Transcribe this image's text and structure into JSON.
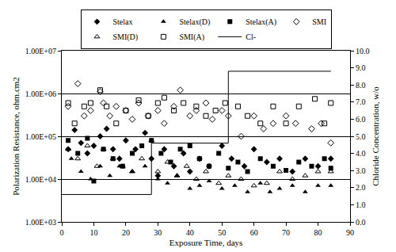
{
  "chart_data": {
    "type": "scatter",
    "x_label": "Exposure Time, days",
    "y_label": "Polarization Resistance, ohm.cm2",
    "y2_label": "Chloride Concentration, w/o",
    "log": "y",
    "grid": true,
    "legend": "top",
    "xlim": [
      0,
      90
    ],
    "xticks": [
      0,
      10,
      20,
      30,
      40,
      50,
      60,
      70,
      80,
      90
    ],
    "ylim": [
      1000,
      10000000
    ],
    "yticks": [
      {
        "value": 1000,
        "label": "1.00E+03"
      },
      {
        "value": 10000,
        "label": "1.00E+04"
      },
      {
        "value": 100000,
        "label": "1.00E+05"
      },
      {
        "value": 1000000,
        "label": "1.00E+06"
      },
      {
        "value": 10000000,
        "label": "1.00E+07"
      }
    ],
    "y2lim": [
      0,
      10
    ],
    "y2ticks": [
      {
        "value": 0,
        "label": "0.0"
      },
      {
        "value": 1,
        "label": "1.0"
      },
      {
        "value": 2,
        "label": "2.0"
      },
      {
        "value": 3,
        "label": "3.0"
      },
      {
        "value": 4,
        "label": "4.0"
      },
      {
        "value": 5,
        "label": "5.0"
      },
      {
        "value": 6,
        "label": "6.0"
      },
      {
        "value": 7,
        "label": "7.0"
      },
      {
        "value": 8,
        "label": "8.0"
      },
      {
        "value": 9,
        "label": "9.0"
      },
      {
        "value": 10,
        "label": "10.0"
      }
    ],
    "series": [
      {
        "name": "Stelax",
        "type": "scatter",
        "marker": "diamond",
        "color": "#000000",
        "x": [
          2,
          4,
          6,
          8,
          10,
          12,
          14,
          16,
          18,
          20,
          23,
          26,
          28,
          30,
          32,
          35,
          38,
          40,
          43,
          46,
          50,
          53,
          57,
          60,
          64,
          68,
          72,
          76,
          80,
          84
        ],
        "values": [
          50000,
          140000,
          70000,
          40000,
          60000,
          100000,
          150000,
          50000,
          30000,
          80000,
          50000,
          120000,
          30000,
          12000,
          50000,
          20000,
          40000,
          15000,
          30000,
          20000,
          60000,
          30000,
          20000,
          50000,
          25000,
          30000,
          15000,
          30000,
          20000,
          30000
        ]
      },
      {
        "name": "Stelax(D)",
        "type": "scatter",
        "marker": "triangle-up",
        "color": "#000000",
        "x": [
          3,
          6,
          9,
          12,
          15,
          18,
          22,
          26,
          30,
          33,
          36,
          40,
          43,
          46,
          50,
          54,
          58,
          62,
          65,
          68,
          72,
          76,
          80,
          84
        ],
        "values": [
          30000,
          15000,
          10000,
          20000,
          12000,
          20000,
          15000,
          20000,
          10000,
          8000,
          12000,
          6000,
          7000,
          9000,
          6000,
          7000,
          5000,
          8000,
          5000,
          6000,
          7000,
          5000,
          7000,
          7000
        ]
      },
      {
        "name": "Stelax(A)",
        "type": "scatter",
        "marker": "square",
        "color": "#000000",
        "x": [
          2,
          5,
          8,
          10,
          13,
          16,
          19,
          22,
          25,
          28,
          31,
          34,
          37,
          40,
          43,
          46,
          49,
          52,
          55,
          58,
          62,
          66,
          70,
          74,
          78,
          82,
          84
        ],
        "values": [
          80000,
          40000,
          90000,
          9000,
          50000,
          30000,
          20000,
          40000,
          60000,
          80000,
          40000,
          25000,
          50000,
          60000,
          30000,
          20000,
          40000,
          18000,
          25000,
          15000,
          30000,
          20000,
          16000,
          25000,
          20000,
          30000,
          18000
        ]
      },
      {
        "name": "SMI",
        "type": "scatter",
        "marker": "diamond-open",
        "color": "#000000",
        "x": [
          2,
          5,
          7,
          9,
          12,
          13,
          15,
          17,
          20,
          22,
          24,
          27,
          30,
          32,
          35,
          37,
          40,
          42,
          45,
          47,
          50,
          52,
          56,
          60,
          63,
          66,
          70,
          73,
          78,
          81,
          84
        ],
        "values": [
          500000,
          1700000,
          300000,
          400000,
          1100000,
          600000,
          300000,
          500000,
          400000,
          250000,
          600000,
          300000,
          400000,
          200000,
          500000,
          1200000,
          300000,
          400000,
          600000,
          250000,
          400000,
          300000,
          100000,
          300000,
          150000,
          200000,
          300000,
          200000,
          150000,
          200000,
          70000
        ]
      },
      {
        "name": "SMI(D)",
        "type": "scatter",
        "marker": "triangle-up-open",
        "color": "#000000",
        "x": [
          2,
          5,
          8,
          11,
          13,
          16,
          19,
          22,
          25,
          28,
          30,
          33,
          36,
          39,
          42,
          45,
          49,
          52,
          56,
          60,
          64,
          68,
          72,
          76,
          80,
          84
        ],
        "values": [
          50000,
          30000,
          60000,
          20000,
          50000,
          30000,
          20000,
          15000,
          30000,
          80000,
          15000,
          25000,
          12000,
          20000,
          10000,
          15000,
          8000,
          12000,
          10000,
          7000,
          8000,
          15000,
          10000,
          12000,
          15000,
          15000
        ]
      },
      {
        "name": "SMI(A)",
        "type": "scatter",
        "marker": "square-open",
        "color": "#000000",
        "x": [
          2,
          4,
          7,
          9,
          12,
          14,
          17,
          20,
          24,
          27,
          30,
          32,
          35,
          38,
          42,
          45,
          48,
          51,
          55,
          58,
          62,
          66,
          70,
          74,
          79,
          82,
          84
        ],
        "values": [
          600000,
          200000,
          500000,
          600000,
          1200000,
          500000,
          200000,
          400000,
          700000,
          300000,
          600000,
          800000,
          400000,
          600000,
          500000,
          300000,
          400000,
          600000,
          500000,
          300000,
          200000,
          500000,
          200000,
          500000,
          750000,
          200000,
          600000
        ]
      },
      {
        "name": "Cl-",
        "type": "line",
        "axis": "y2",
        "line_style": "solid",
        "color": "#000000",
        "x": [
          0,
          28,
          28,
          52,
          52,
          84
        ],
        "values": [
          1.6,
          1.6,
          4.6,
          4.6,
          8.8,
          8.8
        ]
      }
    ]
  }
}
